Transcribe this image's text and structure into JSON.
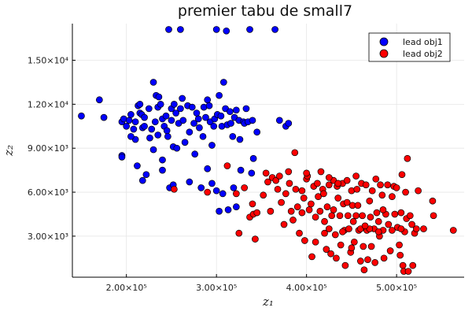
{
  "chart_data": {
    "type": "scatter",
    "title": "premier tabu de small7",
    "xlabel": "z₁",
    "ylabel": "z₂",
    "xlim": [
      140000,
      575000
    ],
    "ylim": [
      200,
      17500
    ],
    "grid": true,
    "legend_position": "top-right",
    "xticks": [
      {
        "value": 200000,
        "label": "2.00×10⁵"
      },
      {
        "value": 300000,
        "label": "3.00×10⁵"
      },
      {
        "value": 400000,
        "label": "4.00×10⁵"
      },
      {
        "value": 500000,
        "label": "5.00×10⁵"
      }
    ],
    "yticks": [
      {
        "value": 3000,
        "label": "3.00×10³"
      },
      {
        "value": 6000,
        "label": "6.00×10³"
      },
      {
        "value": 9000,
        "label": "9.00×10³"
      },
      {
        "value": 12000,
        "label": "1.20×10⁴"
      },
      {
        "value": 15000,
        "label": "1.50×10⁴"
      }
    ],
    "series": [
      {
        "name": "lead obj1",
        "color": "#0000ff",
        "points": [
          [
            150000,
            11200
          ],
          [
            170000,
            12300
          ],
          [
            175000,
            11100
          ],
          [
            195000,
            10800
          ],
          [
            195000,
            8500
          ],
          [
            197000,
            11000
          ],
          [
            203000,
            10900
          ],
          [
            205000,
            11300
          ],
          [
            210000,
            10800
          ],
          [
            210000,
            9600
          ],
          [
            213000,
            11900
          ],
          [
            215000,
            12000
          ],
          [
            215000,
            11400
          ],
          [
            217000,
            11300
          ],
          [
            218000,
            10400
          ],
          [
            220000,
            11100
          ],
          [
            220000,
            10500
          ],
          [
            222000,
            7200
          ],
          [
            225000,
            11700
          ],
          [
            226000,
            9700
          ],
          [
            228000,
            10300
          ],
          [
            230000,
            8900
          ],
          [
            230000,
            13500
          ],
          [
            232000,
            10800
          ],
          [
            233000,
            12600
          ],
          [
            235000,
            11800
          ],
          [
            235000,
            9900
          ],
          [
            236000,
            12500
          ],
          [
            238000,
            12000
          ],
          [
            240000,
            11000
          ],
          [
            240000,
            8200
          ],
          [
            242000,
            10500
          ],
          [
            244000,
            11200
          ],
          [
            245000,
            10200
          ],
          [
            246000,
            9800
          ],
          [
            247000,
            17100
          ],
          [
            248000,
            6300
          ],
          [
            250000,
            11700
          ],
          [
            250000,
            10900
          ],
          [
            252000,
            9100
          ],
          [
            253000,
            12000
          ],
          [
            255000,
            11400
          ],
          [
            256000,
            9000
          ],
          [
            258000,
            10700
          ],
          [
            260000,
            17100
          ],
          [
            260000,
            11700
          ],
          [
            262000,
            12400
          ],
          [
            263000,
            10900
          ],
          [
            265000,
            9400
          ],
          [
            268000,
            11900
          ],
          [
            270000,
            10100
          ],
          [
            270000,
            6700
          ],
          [
            273000,
            11800
          ],
          [
            275000,
            10700
          ],
          [
            276000,
            8600
          ],
          [
            278000,
            11400
          ],
          [
            280000,
            11000
          ],
          [
            281000,
            10400
          ],
          [
            283000,
            6300
          ],
          [
            285000,
            9800
          ],
          [
            286000,
            11800
          ],
          [
            288000,
            11100
          ],
          [
            290000,
            12300
          ],
          [
            290000,
            7600
          ],
          [
            292000,
            11900
          ],
          [
            293000,
            10800
          ],
          [
            295000,
            9200
          ],
          [
            295000,
            6600
          ],
          [
            297000,
            10500
          ],
          [
            298000,
            11000
          ],
          [
            300000,
            17100
          ],
          [
            300000,
            6100
          ],
          [
            301000,
            11300
          ],
          [
            303000,
            12600
          ],
          [
            303000,
            4700
          ],
          [
            305000,
            11200
          ],
          [
            306000,
            10500
          ],
          [
            307000,
            5900
          ],
          [
            308000,
            13500
          ],
          [
            310000,
            11700
          ],
          [
            311000,
            17000
          ],
          [
            312000,
            10600
          ],
          [
            313000,
            4800
          ],
          [
            315000,
            11500
          ],
          [
            316000,
            10700
          ],
          [
            318000,
            9800
          ],
          [
            319000,
            6300
          ],
          [
            320000,
            11100
          ],
          [
            322000,
            11600
          ],
          [
            322000,
            5000
          ],
          [
            325000,
            10900
          ],
          [
            326000,
            9600
          ],
          [
            327000,
            7500
          ],
          [
            330000,
            10800
          ],
          [
            331000,
            10700
          ],
          [
            333000,
            11700
          ],
          [
            335000,
            10800
          ],
          [
            337000,
            17100
          ],
          [
            339000,
            7300
          ],
          [
            340000,
            10900
          ],
          [
            341000,
            8300
          ],
          [
            345000,
            10100
          ],
          [
            365000,
            17100
          ],
          [
            370000,
            10900
          ],
          [
            377000,
            10500
          ],
          [
            380000,
            10700
          ],
          [
            195000,
            8400
          ],
          [
            200000,
            10500
          ],
          [
            205000,
            9800
          ],
          [
            208000,
            10300
          ],
          [
            212000,
            7800
          ],
          [
            218000,
            6800
          ],
          [
            240000,
            7500
          ],
          [
            252000,
            6500
          ]
        ]
      },
      {
        "name": "lead obj2",
        "color": "#ff0000",
        "points": [
          [
            253000,
            6200
          ],
          [
            290000,
            6000
          ],
          [
            312000,
            7800
          ],
          [
            322000,
            5900
          ],
          [
            325000,
            3200
          ],
          [
            331000,
            6300
          ],
          [
            337000,
            4300
          ],
          [
            340000,
            5200
          ],
          [
            341000,
            4500
          ],
          [
            343000,
            2800
          ],
          [
            345000,
            4600
          ],
          [
            352000,
            5800
          ],
          [
            355000,
            7300
          ],
          [
            357000,
            6700
          ],
          [
            360000,
            4700
          ],
          [
            362000,
            7000
          ],
          [
            366000,
            6800
          ],
          [
            368000,
            6200
          ],
          [
            370000,
            7100
          ],
          [
            372000,
            5300
          ],
          [
            375000,
            3800
          ],
          [
            377000,
            5900
          ],
          [
            380000,
            7400
          ],
          [
            381000,
            6600
          ],
          [
            383000,
            4700
          ],
          [
            385000,
            4100
          ],
          [
            387000,
            8700
          ],
          [
            388000,
            6200
          ],
          [
            390000,
            5000
          ],
          [
            392000,
            3200
          ],
          [
            395000,
            4600
          ],
          [
            397000,
            5600
          ],
          [
            398000,
            2700
          ],
          [
            400000,
            6900
          ],
          [
            401000,
            7100
          ],
          [
            403000,
            4800
          ],
          [
            405000,
            5200
          ],
          [
            406000,
            1600
          ],
          [
            408000,
            6400
          ],
          [
            410000,
            4300
          ],
          [
            410000,
            2600
          ],
          [
            412000,
            6600
          ],
          [
            413000,
            5700
          ],
          [
            415000,
            4700
          ],
          [
            416000,
            7400
          ],
          [
            418000,
            6200
          ],
          [
            419000,
            5900
          ],
          [
            420000,
            4000
          ],
          [
            422000,
            2100
          ],
          [
            423000,
            5000
          ],
          [
            425000,
            6500
          ],
          [
            425000,
            3500
          ],
          [
            427000,
            1800
          ],
          [
            428000,
            4400
          ],
          [
            430000,
            6800
          ],
          [
            430000,
            4800
          ],
          [
            432000,
            3100
          ],
          [
            433000,
            1500
          ],
          [
            434000,
            6400
          ],
          [
            435000,
            5600
          ],
          [
            437000,
            4400
          ],
          [
            438000,
            2400
          ],
          [
            440000,
            6600
          ],
          [
            441000,
            5200
          ],
          [
            442000,
            3400
          ],
          [
            443000,
            1000
          ],
          [
            445000,
            6800
          ],
          [
            446000,
            4400
          ],
          [
            447000,
            3500
          ],
          [
            449000,
            1900
          ],
          [
            450000,
            6100
          ],
          [
            451000,
            5100
          ],
          [
            452000,
            4000
          ],
          [
            453000,
            2600
          ],
          [
            455000,
            7100
          ],
          [
            456000,
            6200
          ],
          [
            457000,
            5100
          ],
          [
            458000,
            3400
          ],
          [
            460000,
            1300
          ],
          [
            461000,
            6600
          ],
          [
            462000,
            4400
          ],
          [
            463000,
            2300
          ],
          [
            464000,
            700
          ],
          [
            466000,
            6500
          ],
          [
            467000,
            3400
          ],
          [
            468000,
            1400
          ],
          [
            470000,
            5400
          ],
          [
            471000,
            4300
          ],
          [
            472000,
            2300
          ],
          [
            473000,
            6100
          ],
          [
            475000,
            3500
          ],
          [
            476000,
            1200
          ],
          [
            477000,
            6900
          ],
          [
            478000,
            4600
          ],
          [
            480000,
            4000
          ],
          [
            481000,
            3000
          ],
          [
            482000,
            6500
          ],
          [
            484000,
            5800
          ],
          [
            485000,
            3400
          ],
          [
            486000,
            1500
          ],
          [
            488000,
            4500
          ],
          [
            490000,
            6500
          ],
          [
            491000,
            3800
          ],
          [
            493000,
            2000
          ],
          [
            495000,
            3400
          ],
          [
            497000,
            6400
          ],
          [
            498000,
            4500
          ],
          [
            500000,
            6300
          ],
          [
            501000,
            3600
          ],
          [
            503000,
            2400
          ],
          [
            504000,
            1700
          ],
          [
            505000,
            4600
          ],
          [
            506000,
            7200
          ],
          [
            507000,
            1000
          ],
          [
            508000,
            600
          ],
          [
            509000,
            3300
          ],
          [
            510000,
            6000
          ],
          [
            511000,
            4200
          ],
          [
            512000,
            8300
          ],
          [
            513000,
            600
          ],
          [
            515000,
            4400
          ],
          [
            517000,
            3800
          ],
          [
            518000,
            1000
          ],
          [
            520000,
            3200
          ],
          [
            522000,
            3500
          ],
          [
            524000,
            6100
          ],
          [
            530000,
            3500
          ],
          [
            540000,
            5400
          ],
          [
            541000,
            4400
          ],
          [
            563000,
            3400
          ],
          [
            480000,
            3300
          ],
          [
            470000,
            3500
          ],
          [
            440000,
            3300
          ],
          [
            460000,
            3500
          ],
          [
            450000,
            2200
          ],
          [
            420000,
            3200
          ],
          [
            495000,
            5700
          ],
          [
            505000,
            3500
          ],
          [
            455000,
            4400
          ],
          [
            435000,
            6600
          ],
          [
            445000,
            5300
          ],
          [
            425000,
            7000
          ],
          [
            465000,
            3700
          ],
          [
            485000,
            4800
          ],
          [
            400000,
            7300
          ],
          [
            395000,
            6100
          ]
        ]
      }
    ]
  }
}
